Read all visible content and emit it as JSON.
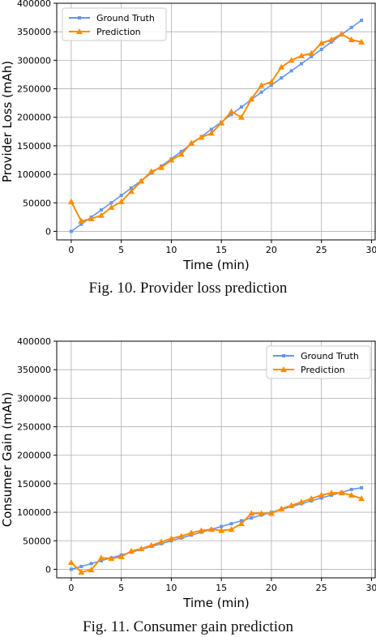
{
  "figures": [
    {
      "caption": "Fig. 10.  Provider loss prediction",
      "chart_data": {
        "type": "line",
        "title": "",
        "xlabel": "Time (min)",
        "ylabel": "Provider Loss (mAh)",
        "xlim": [
          -1.45,
          30.45
        ],
        "ylim": [
          -15000,
          400000
        ],
        "xticks": [
          0,
          5,
          10,
          15,
          20,
          25,
          30
        ],
        "yticks": [
          0,
          50000,
          100000,
          150000,
          200000,
          250000,
          300000,
          350000,
          400000
        ],
        "grid": true,
        "legend": "top-left",
        "x": [
          0,
          1,
          2,
          3,
          4,
          5,
          6,
          7,
          8,
          9,
          10,
          11,
          12,
          13,
          14,
          15,
          16,
          17,
          18,
          19,
          20,
          21,
          22,
          23,
          24,
          25,
          26,
          27,
          28,
          29
        ],
        "series": [
          {
            "name": "Ground Truth",
            "color": "#6495ed",
            "marker": "square",
            "values": [
              0,
              12500,
              25000,
              37500,
              50000,
              63000,
              76000,
              89000,
              102000,
              114500,
              127000,
              140000,
              153000,
              166000,
              179000,
              191500,
              205000,
              218000,
              231000,
              244000,
              256500,
              269000,
              281500,
              294000,
              306500,
              319000,
              332000,
              345000,
              357500,
              370000
            ]
          },
          {
            "name": "Prediction",
            "color": "#ff8c00",
            "marker": "triangle",
            "values": [
              52000,
              18000,
              22000,
              28000,
              42000,
              52000,
              70000,
              88000,
              105000,
              112000,
              125000,
              135000,
              155000,
              165000,
              172000,
              190000,
              210000,
              200000,
              232000,
              256000,
              262000,
              288000,
              300000,
              308000,
              312000,
              330000,
              336000,
              346000,
              336000,
              332000
            ]
          }
        ]
      }
    },
    {
      "caption": "Fig. 11.  Consumer gain prediction",
      "chart_data": {
        "type": "line",
        "title": "",
        "xlabel": "Time (min)",
        "ylabel": "Consumer Gain (mAh)",
        "xlim": [
          -1.45,
          30.45
        ],
        "ylim": [
          -15000,
          400000
        ],
        "xticks": [
          0,
          5,
          10,
          15,
          20,
          25,
          30
        ],
        "yticks": [
          0,
          50000,
          100000,
          150000,
          200000,
          250000,
          300000,
          350000,
          400000
        ],
        "grid": true,
        "legend": "top-right",
        "x": [
          0,
          1,
          2,
          3,
          4,
          5,
          6,
          7,
          8,
          9,
          10,
          11,
          12,
          13,
          14,
          15,
          16,
          17,
          18,
          19,
          20,
          21,
          22,
          23,
          24,
          25,
          26,
          27,
          28,
          29
        ],
        "series": [
          {
            "name": "Ground Truth",
            "color": "#6495ed",
            "marker": "square",
            "values": [
              0,
              5000,
              10000,
              15000,
              20000,
              25000,
              30000,
              35000,
              40000,
              45000,
              50000,
              55000,
              60000,
              65000,
              70000,
              75000,
              80000,
              85000,
              90000,
              95000,
              100000,
              105000,
              110000,
              115000,
              120000,
              125000,
              130000,
              135000,
              140000,
              143000
            ]
          },
          {
            "name": "Prediction",
            "color": "#ff8c00",
            "marker": "triangle",
            "values": [
              12000,
              -5000,
              -1000,
              20000,
              19000,
              22000,
              32000,
              36000,
              42000,
              48000,
              54000,
              58000,
              64000,
              68000,
              70000,
              68000,
              70000,
              80000,
              98000,
              98000,
              98000,
              106000,
              112000,
              118000,
              124000,
              130000,
              134000,
              134000,
              130000,
              124000
            ]
          }
        ]
      }
    }
  ]
}
